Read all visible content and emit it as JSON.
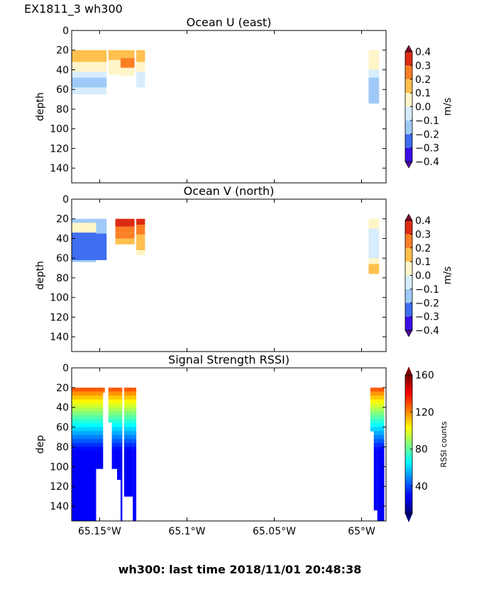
{
  "figure_title": "EX1811_3 wh300",
  "footer": "wh300: last time 2018/11/01 20:48:38",
  "chart_data": [
    {
      "type": "heatmap",
      "title": "Ocean U (east)",
      "ylabel": "depth",
      "xlabel": "",
      "ylim": [
        155,
        0
      ],
      "yticks": [
        "0",
        "20",
        "40",
        "60",
        "80",
        "100",
        "120",
        "140"
      ],
      "ytick_values": [
        0,
        20,
        40,
        60,
        80,
        100,
        120,
        140
      ],
      "xlim": [
        -65.166,
        -64.986
      ],
      "xticks": [],
      "xtick_values": [
        -65.15,
        -65.1,
        -65.05,
        -65.0
      ],
      "colorbar": {
        "label": "m/s",
        "ticks": [
          "0.4",
          "0.3",
          "0.2",
          "0.1",
          "0.0",
          "−0.1",
          "−0.2",
          "−0.3",
          "−0.4"
        ],
        "levels": [
          -0.4,
          -0.3,
          -0.2,
          -0.1,
          0.0,
          0.1,
          0.2,
          0.3,
          0.4
        ],
        "colors": [
          "#3a0ee6",
          "#3f6ef2",
          "#9fcaf8",
          "#d7edfc",
          "#fff5c8",
          "#ffc04e",
          "#fb7f24",
          "#dc2b14"
        ],
        "extend_low": "#4a0a9a",
        "extend_high": "#7a0a30"
      },
      "segments": [
        {
          "x0": -65.166,
          "x1": -65.146,
          "top": 20,
          "bottom": 65,
          "bands": [
            {
              "d": [
                20,
                32
              ],
              "v": 0.15
            },
            {
              "d": [
                32,
                42
              ],
              "v": 0.05
            },
            {
              "d": [
                42,
                65
              ],
              "v": -0.05
            },
            {
              "d": [
                48,
                58
              ],
              "v": -0.15
            }
          ]
        },
        {
          "x0": -65.145,
          "x1": -65.138,
          "top": 20,
          "bottom": 45,
          "bands": [
            {
              "d": [
                20,
                30
              ],
              "v": 0.15
            },
            {
              "d": [
                30,
                45
              ],
              "v": 0.05
            }
          ]
        },
        {
          "x0": -65.138,
          "x1": -65.13,
          "top": 20,
          "bottom": 46,
          "bands": [
            {
              "d": [
                20,
                28
              ],
              "v": 0.15
            },
            {
              "d": [
                28,
                38
              ],
              "v": 0.25
            },
            {
              "d": [
                38,
                46
              ],
              "v": 0.05
            }
          ]
        },
        {
          "x0": -65.129,
          "x1": -65.124,
          "top": 20,
          "bottom": 58,
          "bands": [
            {
              "d": [
                20,
                32
              ],
              "v": 0.15
            },
            {
              "d": [
                32,
                42
              ],
              "v": 0.05
            },
            {
              "d": [
                42,
                58
              ],
              "v": -0.05
            }
          ]
        },
        {
          "x0": -64.996,
          "x1": -64.99,
          "top": 20,
          "bottom": 75,
          "bands": [
            {
              "d": [
                20,
                40
              ],
              "v": 0.05
            },
            {
              "d": [
                40,
                75
              ],
              "v": -0.05
            },
            {
              "d": [
                48,
                74
              ],
              "v": -0.15
            }
          ]
        }
      ]
    },
    {
      "type": "heatmap",
      "title": "Ocean V (north)",
      "ylabel": "depth",
      "xlabel": "",
      "ylim": [
        155,
        0
      ],
      "yticks": [
        "0",
        "20",
        "40",
        "60",
        "80",
        "100",
        "120",
        "140"
      ],
      "ytick_values": [
        0,
        20,
        40,
        60,
        80,
        100,
        120,
        140
      ],
      "xlim": [
        -65.166,
        -64.986
      ],
      "xticks": [],
      "xtick_values": [
        -65.15,
        -65.1,
        -65.05,
        -65.0
      ],
      "colorbar": {
        "label": "m/s",
        "ticks": [
          "0.4",
          "0.3",
          "0.2",
          "0.1",
          "0.0",
          "−0.1",
          "−0.2",
          "−0.3",
          "−0.4"
        ],
        "levels": [
          -0.4,
          -0.3,
          -0.2,
          -0.1,
          0.0,
          0.1,
          0.2,
          0.3,
          0.4
        ],
        "colors": [
          "#3a0ee6",
          "#3f6ef2",
          "#9fcaf8",
          "#d7edfc",
          "#fff5c8",
          "#ffc04e",
          "#fb7f24",
          "#dc2b14"
        ],
        "extend_low": "#4a0a9a",
        "extend_high": "#7a0a30"
      },
      "segments": [
        {
          "x0": -65.166,
          "x1": -65.152,
          "top": 20,
          "bottom": 64,
          "bands": [
            {
              "d": [
                20,
                64
              ],
              "v": -0.15
            },
            {
              "d": [
                24,
                40
              ],
              "v": 0.05
            },
            {
              "d": [
                34,
                62
              ],
              "v": -0.25
            }
          ]
        },
        {
          "x0": -65.152,
          "x1": -65.146,
          "top": 20,
          "bottom": 62,
          "bands": [
            {
              "d": [
                20,
                35
              ],
              "v": -0.15
            },
            {
              "d": [
                35,
                62
              ],
              "v": -0.25
            }
          ]
        },
        {
          "x0": -65.141,
          "x1": -65.13,
          "top": 20,
          "bottom": 46,
          "bands": [
            {
              "d": [
                20,
                28
              ],
              "v": 0.35
            },
            {
              "d": [
                28,
                34
              ],
              "v": 0.28
            },
            {
              "d": [
                34,
                40
              ],
              "v": 0.25
            },
            {
              "d": [
                40,
                46
              ],
              "v": 0.15
            }
          ]
        },
        {
          "x0": -65.129,
          "x1": -65.124,
          "top": 20,
          "bottom": 57,
          "bands": [
            {
              "d": [
                20,
                26
              ],
              "v": 0.35
            },
            {
              "d": [
                26,
                36
              ],
              "v": 0.25
            },
            {
              "d": [
                36,
                52
              ],
              "v": 0.15
            },
            {
              "d": [
                52,
                57
              ],
              "v": 0.05
            }
          ]
        },
        {
          "x0": -64.996,
          "x1": -64.99,
          "top": 20,
          "bottom": 76,
          "bands": [
            {
              "d": [
                20,
                76
              ],
              "v": 0.05
            },
            {
              "d": [
                30,
                60
              ],
              "v": -0.05
            },
            {
              "d": [
                66,
                76
              ],
              "v": 0.15
            }
          ]
        }
      ]
    },
    {
      "type": "heatmap",
      "title": "Signal Strength RSSI)",
      "ylabel": "dep",
      "xlabel": "",
      "ylim": [
        155,
        0
      ],
      "yticks": [
        "0",
        "20",
        "40",
        "60",
        "80",
        "100",
        "120",
        "140"
      ],
      "ytick_values": [
        0,
        20,
        40,
        60,
        80,
        100,
        120,
        140
      ],
      "xlim": [
        -65.166,
        -64.986
      ],
      "xticks": [
        "65.15°W",
        "65.1°W",
        "65.05°W",
        "65°W"
      ],
      "xtick_values": [
        -65.15,
        -65.1,
        -65.05,
        -65.0
      ],
      "colorbar": {
        "label": "RSSI counts",
        "ticks": [
          "160",
          "120",
          "80",
          "40"
        ],
        "tick_values": [
          160,
          120,
          80,
          40
        ],
        "range": [
          10,
          160
        ],
        "colormap": "jet"
      },
      "segments": [
        {
          "x0": -65.166,
          "x1": -65.152,
          "top": 20,
          "bottom": 155
        },
        {
          "x0": -65.152,
          "x1": -65.148,
          "top": 20,
          "bottom": 102
        },
        {
          "x0": -65.148,
          "x1": -65.147,
          "top": 20,
          "bottom": 25
        },
        {
          "x0": -65.145,
          "x1": -65.143,
          "top": 20,
          "bottom": 55
        },
        {
          "x0": -65.143,
          "x1": -65.14,
          "top": 20,
          "bottom": 102
        },
        {
          "x0": -65.14,
          "x1": -65.138,
          "top": 20,
          "bottom": 113
        },
        {
          "x0": -65.138,
          "x1": -65.137,
          "top": 20,
          "bottom": 155
        },
        {
          "x0": -65.136,
          "x1": -65.131,
          "top": 20,
          "bottom": 130
        },
        {
          "x0": -65.131,
          "x1": -65.129,
          "top": 20,
          "bottom": 155
        },
        {
          "x0": -64.995,
          "x1": -64.993,
          "top": 20,
          "bottom": 64
        },
        {
          "x0": -64.993,
          "x1": -64.991,
          "top": 20,
          "bottom": 144
        },
        {
          "x0": -64.991,
          "x1": -64.987,
          "top": 20,
          "bottom": 155
        }
      ]
    }
  ]
}
